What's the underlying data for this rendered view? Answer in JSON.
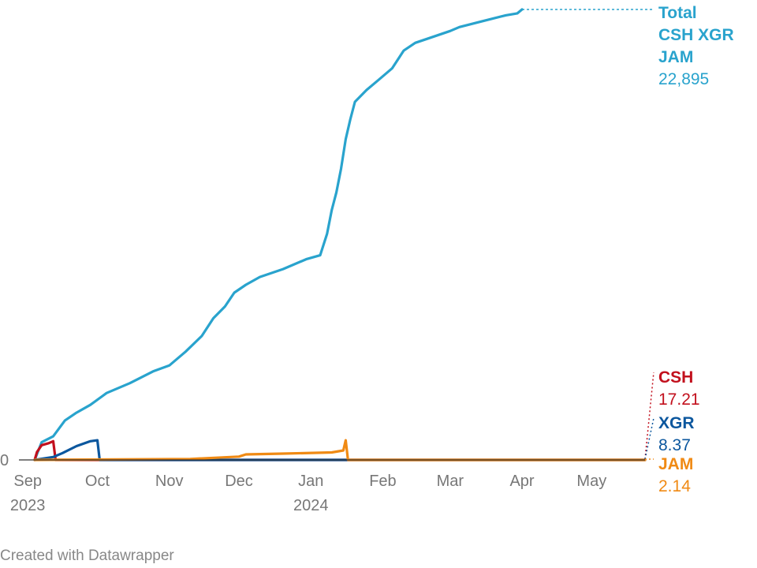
{
  "chart_data": {
    "type": "line",
    "title": "",
    "xlabel": "",
    "ylabel": "",
    "x_tick_labels": [
      {
        "month": "Sep",
        "year": "2023",
        "date": "2023-09-01"
      },
      {
        "month": "Oct",
        "year": "",
        "date": "2023-10-01"
      },
      {
        "month": "Nov",
        "year": "",
        "date": "2023-11-01"
      },
      {
        "month": "Dec",
        "year": "",
        "date": "2023-12-01"
      },
      {
        "month": "Jan",
        "year": "2024",
        "date": "2024-01-01"
      },
      {
        "month": "Feb",
        "year": "",
        "date": "2024-02-01"
      },
      {
        "month": "Mar",
        "year": "",
        "date": "2024-03-01"
      },
      {
        "month": "Apr",
        "year": "",
        "date": "2024-04-01"
      },
      {
        "month": "May",
        "year": "",
        "date": "2024-05-01"
      }
    ],
    "y_tick_labels": [
      "0"
    ],
    "xlim": [
      "2023-09-04",
      "2024-05-24"
    ],
    "ylim": [
      0,
      22895
    ],
    "series": [
      {
        "name": "Total CSH XGR JAM",
        "label_lines": [
          "Total",
          "CSH XGR",
          "JAM"
        ],
        "value_label": "22,895",
        "color": "#29a3cd",
        "x": [
          "2023-09-04",
          "2023-09-07",
          "2023-09-12",
          "2023-09-17",
          "2023-09-22",
          "2023-09-28",
          "2023-10-05",
          "2023-10-15",
          "2023-10-25",
          "2023-11-01",
          "2023-11-08",
          "2023-11-15",
          "2023-11-20",
          "2023-11-25",
          "2023-11-29",
          "2023-12-04",
          "2023-12-10",
          "2023-12-20",
          "2023-12-30",
          "2024-01-05",
          "2024-01-08",
          "2024-01-10",
          "2024-01-12",
          "2024-01-14",
          "2024-01-16",
          "2024-01-18",
          "2024-01-20",
          "2024-01-25",
          "2024-01-30",
          "2024-02-05",
          "2024-02-10",
          "2024-02-15",
          "2024-02-20",
          "2024-03-01",
          "2024-03-05",
          "2024-03-15",
          "2024-03-25",
          "2024-03-30",
          "2024-04-01"
        ],
        "values": [
          0,
          900,
          1200,
          2000,
          2400,
          2800,
          3400,
          3900,
          4500,
          4800,
          5500,
          6300,
          7200,
          7800,
          8500,
          8900,
          9300,
          9700,
          10200,
          10400,
          11500,
          12700,
          13600,
          14800,
          16300,
          17300,
          18200,
          18800,
          19300,
          19900,
          20800,
          21200,
          21400,
          21800,
          22000,
          22300,
          22600,
          22700,
          22895
        ]
      },
      {
        "name": "CSH",
        "value_label": "17.21",
        "color": "#c2101d",
        "x": [
          "2023-09-04",
          "2023-09-05",
          "2023-09-07",
          "2023-09-10",
          "2023-09-12",
          "2023-09-13",
          "2024-05-24"
        ],
        "values": [
          0,
          400,
          750,
          850,
          950,
          0,
          0
        ]
      },
      {
        "name": "XGR",
        "value_label": "8.37",
        "color": "#0c579e",
        "x": [
          "2023-09-04",
          "2023-09-12",
          "2023-09-16",
          "2023-09-22",
          "2023-09-28",
          "2023-10-01",
          "2023-10-02",
          "2024-05-24"
        ],
        "values": [
          0,
          150,
          350,
          700,
          950,
          1000,
          0,
          0
        ]
      },
      {
        "name": "JAM",
        "value_label": "2.14",
        "color": "#f08a14",
        "x": [
          "2023-09-04",
          "2023-11-10",
          "2023-12-01",
          "2023-12-04",
          "2023-12-20",
          "2024-01-10",
          "2024-01-15",
          "2024-01-16",
          "2024-01-17",
          "2024-05-24"
        ],
        "values": [
          0,
          50,
          170,
          280,
          320,
          380,
          480,
          1000,
          0,
          0
        ]
      }
    ],
    "grid": false,
    "legend": "labels at right end of lines"
  },
  "footer": {
    "credit": "Created with Datawrapper"
  }
}
